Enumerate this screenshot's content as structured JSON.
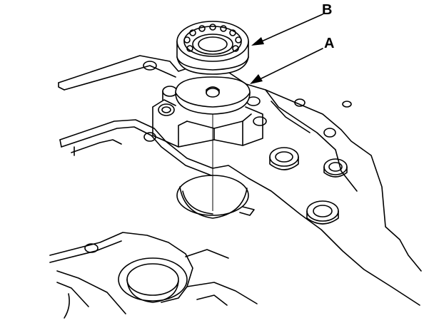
{
  "callouts": {
    "b": "B",
    "a": "A"
  },
  "colors": {
    "line": "#000000",
    "background": "#ffffff"
  }
}
